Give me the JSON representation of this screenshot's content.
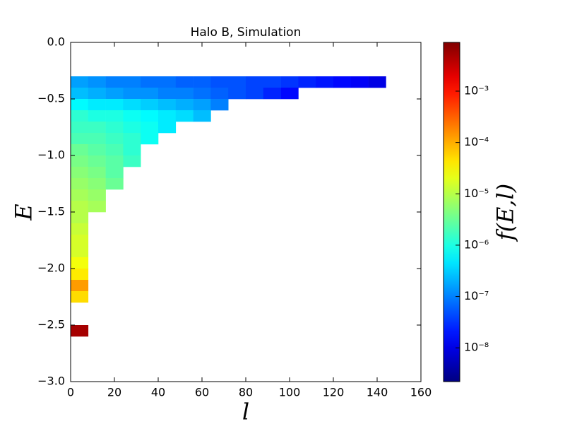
{
  "chart_data": {
    "type": "heatmap",
    "title": "Halo B, Simulation",
    "x_label": "l",
    "y_label": "E",
    "colorbar_label": "f(E,l)",
    "xbins": [
      0,
      8,
      16,
      24,
      32,
      40,
      48,
      56,
      64,
      72,
      80,
      88,
      96,
      104,
      112,
      120,
      128,
      136,
      144,
      152
    ],
    "ybins": [
      -0.3,
      -0.4,
      -0.5,
      -0.6,
      -0.7,
      -0.8,
      -0.9,
      -1.0,
      -1.1,
      -1.2,
      -1.3,
      -1.4,
      -1.5,
      -1.6,
      -1.7,
      -1.8,
      -1.9,
      -2.0,
      -2.1,
      -2.2,
      -2.3,
      -2.4,
      -2.5,
      -2.6
    ],
    "z": [
      [
        1.6e-07,
        1.3e-07,
        1e-07,
        1e-07,
        7.9e-08,
        7.9e-08,
        6.3e-08,
        6.3e-08,
        5e-08,
        5e-08,
        4e-08,
        4e-08,
        3.2e-08,
        2.5e-08,
        2e-08,
        1.6e-08,
        1.3e-08,
        1e-08,
        null
      ],
      [
        2.5e-07,
        2e-07,
        1.6e-07,
        1.3e-07,
        1.3e-07,
        1e-07,
        1e-07,
        7.9e-08,
        6.3e-08,
        5e-08,
        4e-08,
        2.5e-08,
        1.6e-08,
        null,
        null,
        null,
        null,
        null,
        null
      ],
      [
        6.3e-07,
        5e-07,
        5e-07,
        4e-07,
        3.2e-07,
        2.5e-07,
        2e-07,
        1.6e-07,
        1e-07,
        null,
        null,
        null,
        null,
        null,
        null,
        null,
        null,
        null,
        null
      ],
      [
        1.3e-06,
        1e-06,
        1e-06,
        7.9e-07,
        6.3e-07,
        5e-07,
        4e-07,
        2.5e-07,
        null,
        null,
        null,
        null,
        null,
        null,
        null,
        null,
        null,
        null,
        null
      ],
      [
        1.6e-06,
        1.6e-06,
        1.3e-06,
        1e-06,
        7.9e-07,
        5e-07,
        null,
        null,
        null,
        null,
        null,
        null,
        null,
        null,
        null,
        null,
        null,
        null,
        null
      ],
      [
        2e-06,
        2e-06,
        1.6e-06,
        1.3e-06,
        7.9e-07,
        null,
        null,
        null,
        null,
        null,
        null,
        null,
        null,
        null,
        null,
        null,
        null,
        null,
        null
      ],
      [
        3.2e-06,
        2.5e-06,
        2e-06,
        1.3e-06,
        null,
        null,
        null,
        null,
        null,
        null,
        null,
        null,
        null,
        null,
        null,
        null,
        null,
        null,
        null
      ],
      [
        4e-06,
        3.2e-06,
        2.5e-06,
        1.6e-06,
        null,
        null,
        null,
        null,
        null,
        null,
        null,
        null,
        null,
        null,
        null,
        null,
        null,
        null,
        null
      ],
      [
        5e-06,
        4e-06,
        2.5e-06,
        null,
        null,
        null,
        null,
        null,
        null,
        null,
        null,
        null,
        null,
        null,
        null,
        null,
        null,
        null,
        null
      ],
      [
        6.3e-06,
        5e-06,
        3.2e-06,
        null,
        null,
        null,
        null,
        null,
        null,
        null,
        null,
        null,
        null,
        null,
        null,
        null,
        null,
        null,
        null
      ],
      [
        7.9e-06,
        6.3e-06,
        null,
        null,
        null,
        null,
        null,
        null,
        null,
        null,
        null,
        null,
        null,
        null,
        null,
        null,
        null,
        null,
        null
      ],
      [
        1e-05,
        7.9e-06,
        null,
        null,
        null,
        null,
        null,
        null,
        null,
        null,
        null,
        null,
        null,
        null,
        null,
        null,
        null,
        null,
        null
      ],
      [
        1e-05,
        null,
        null,
        null,
        null,
        null,
        null,
        null,
        null,
        null,
        null,
        null,
        null,
        null,
        null,
        null,
        null,
        null,
        null
      ],
      [
        1.3e-05,
        null,
        null,
        null,
        null,
        null,
        null,
        null,
        null,
        null,
        null,
        null,
        null,
        null,
        null,
        null,
        null,
        null,
        null
      ],
      [
        1.6e-05,
        null,
        null,
        null,
        null,
        null,
        null,
        null,
        null,
        null,
        null,
        null,
        null,
        null,
        null,
        null,
        null,
        null,
        null
      ],
      [
        1.6e-05,
        null,
        null,
        null,
        null,
        null,
        null,
        null,
        null,
        null,
        null,
        null,
        null,
        null,
        null,
        null,
        null,
        null,
        null
      ],
      [
        2.5e-05,
        null,
        null,
        null,
        null,
        null,
        null,
        null,
        null,
        null,
        null,
        null,
        null,
        null,
        null,
        null,
        null,
        null,
        null
      ],
      [
        4e-05,
        null,
        null,
        null,
        null,
        null,
        null,
        null,
        null,
        null,
        null,
        null,
        null,
        null,
        null,
        null,
        null,
        null,
        null
      ],
      [
        0.00013,
        null,
        null,
        null,
        null,
        null,
        null,
        null,
        null,
        null,
        null,
        null,
        null,
        null,
        null,
        null,
        null,
        null,
        null
      ],
      [
        5e-05,
        null,
        null,
        null,
        null,
        null,
        null,
        null,
        null,
        null,
        null,
        null,
        null,
        null,
        null,
        null,
        null,
        null,
        null
      ],
      [
        null,
        null,
        null,
        null,
        null,
        null,
        null,
        null,
        null,
        null,
        null,
        null,
        null,
        null,
        null,
        null,
        null,
        null,
        null
      ],
      [
        null,
        null,
        null,
        null,
        null,
        null,
        null,
        null,
        null,
        null,
        null,
        null,
        null,
        null,
        null,
        null,
        null,
        null,
        null
      ],
      [
        0.005,
        null,
        null,
        null,
        null,
        null,
        null,
        null,
        null,
        null,
        null,
        null,
        null,
        null,
        null,
        null,
        null,
        null,
        null
      ]
    ],
    "xlim": [
      0,
      160
    ],
    "xticks": [
      0,
      20,
      40,
      60,
      80,
      100,
      120,
      140,
      160
    ],
    "ylim": [
      -3.0,
      0.0
    ],
    "yticks": [
      {
        "value": 0,
        "label": "0.0"
      },
      {
        "value": -0.5,
        "label": "−0.5"
      },
      {
        "value": -1.0,
        "label": "−1.0"
      },
      {
        "value": -1.5,
        "label": "−1.5"
      },
      {
        "value": -2.0,
        "label": "−2.0"
      },
      {
        "value": -2.5,
        "label": "−2.5"
      },
      {
        "value": -3.0,
        "label": "−3.0"
      }
    ],
    "colormap": "jet",
    "color_scale": "log",
    "clim": [
      2.2e-09,
      0.0089
    ],
    "cticks": [
      {
        "value": 1e-08,
        "label": "10⁻⁸"
      },
      {
        "value": 1e-07,
        "label": "10⁻⁷"
      },
      {
        "value": 1e-06,
        "label": "10⁻⁶"
      },
      {
        "value": 1e-05,
        "label": "10⁻⁵"
      },
      {
        "value": 0.0001,
        "label": "10⁻⁴"
      },
      {
        "value": 0.001,
        "label": "10⁻³"
      }
    ]
  }
}
